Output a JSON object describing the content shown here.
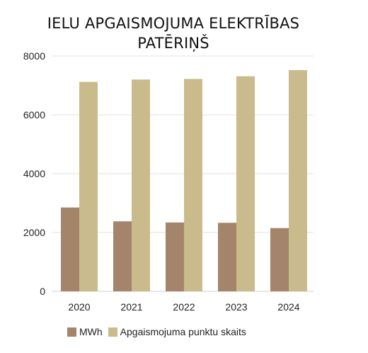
{
  "chart_data": {
    "type": "bar",
    "title_lines": [
      "IELU APGAISMOJUMA ELEKTRĪBAS",
      "PATĒRIŅŠ"
    ],
    "categories": [
      "2020",
      "2021",
      "2022",
      "2023",
      "2024"
    ],
    "series": [
      {
        "name": "MWh",
        "color": "#a4846a",
        "values": [
          2850,
          2380,
          2340,
          2330,
          2150
        ]
      },
      {
        "name": "Apgaismojuma punktu skaits",
        "color": "#c9bb8c",
        "values": [
          7120,
          7200,
          7220,
          7310,
          7520
        ]
      }
    ],
    "yticks": [
      0,
      2000,
      4000,
      6000,
      8000
    ],
    "ylim": [
      0,
      8000
    ],
    "grid": true,
    "legend_position": "bottom-left"
  }
}
